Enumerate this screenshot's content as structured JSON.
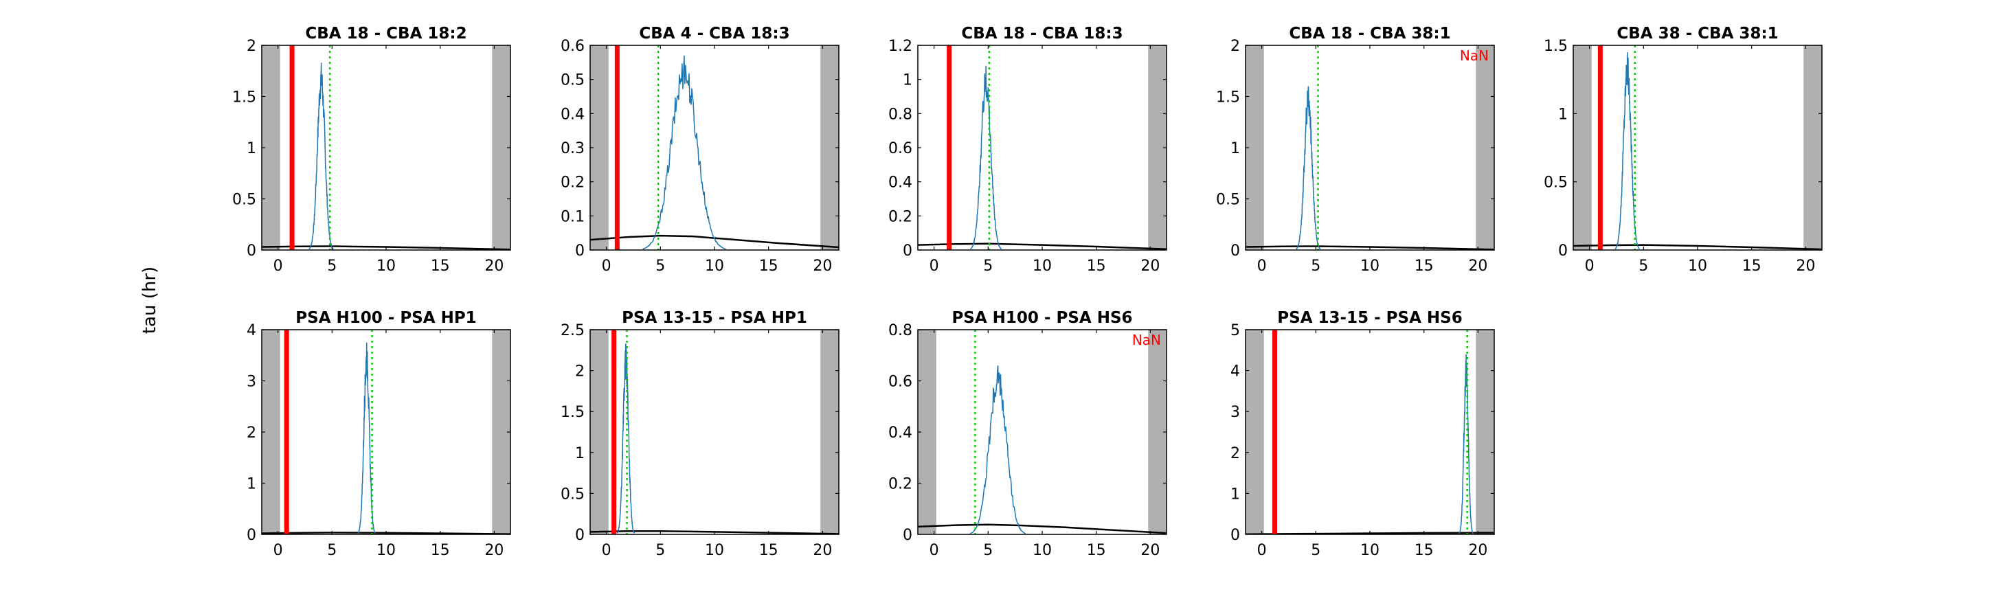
{
  "figure": {
    "ylabel": "tau (hr)"
  },
  "colors": {
    "shade": "#b0b0b0",
    "red_line": "#ff0000",
    "green_line": "#00cc00",
    "series": "#1f77b4",
    "curve": "#000000",
    "nan_text": "#ff0000"
  },
  "chart_data": [
    {
      "type": "line",
      "title": "CBA 18 - CBA 18:2",
      "xlim": [
        -1.5,
        21.5
      ],
      "xticks": [
        0,
        5,
        10,
        15,
        20
      ],
      "ylim": [
        0,
        2
      ],
      "yticks": [
        0,
        0.5,
        1,
        1.5,
        2
      ],
      "ytick_labels": [
        "0",
        "0.5",
        "1",
        "1.5",
        "2"
      ],
      "shaded_regions": [
        [
          -1.5,
          0.2
        ],
        [
          19.8,
          21.5
        ]
      ],
      "red_line_x": 1.3,
      "green_line_x": 4.8,
      "peak": {
        "center": 4.0,
        "width": 0.35,
        "height": 1.83
      },
      "curve": {
        "x": [
          -1.5,
          2,
          5,
          10,
          15,
          21.5
        ],
        "y": [
          0.03,
          0.035,
          0.037,
          0.03,
          0.02,
          0.005
        ]
      },
      "nan_label": ""
    },
    {
      "type": "line",
      "title": "CBA 4 - CBA 18:3",
      "xlim": [
        -1.5,
        21.5
      ],
      "xticks": [
        0,
        5,
        10,
        15,
        20
      ],
      "ylim": [
        0,
        0.6
      ],
      "yticks": [
        0,
        0.1,
        0.2,
        0.3,
        0.4,
        0.5,
        0.6
      ],
      "ytick_labels": [
        "0",
        "0.1",
        "0.2",
        "0.3",
        "0.4",
        "0.5",
        "0.6"
      ],
      "shaded_regions": [
        [
          -1.5,
          0.2
        ],
        [
          19.8,
          21.5
        ]
      ],
      "red_line_x": 1.0,
      "green_line_x": 4.8,
      "peak": {
        "center": 7.2,
        "width": 1.2,
        "height": 0.57
      },
      "curve": {
        "x": [
          -1.5,
          2,
          5,
          8,
          12,
          16,
          21.5
        ],
        "y": [
          0.03,
          0.038,
          0.042,
          0.04,
          0.03,
          0.02,
          0.008
        ]
      },
      "nan_label": ""
    },
    {
      "type": "line",
      "title": "CBA 18 - CBA 18:3",
      "xlim": [
        -1.5,
        21.5
      ],
      "xticks": [
        0,
        5,
        10,
        15,
        20
      ],
      "ylim": [
        0,
        1.2
      ],
      "yticks": [
        0,
        0.2,
        0.4,
        0.6,
        0.8,
        1,
        1.2
      ],
      "ytick_labels": [
        "0",
        "0.2",
        "0.4",
        "0.6",
        "0.8",
        "1",
        "1.2"
      ],
      "shaded_regions": [
        [
          -1.5,
          -1.5
        ],
        [
          19.8,
          21.5
        ]
      ],
      "red_line_x": 1.4,
      "green_line_x": 5.1,
      "peak": {
        "center": 4.8,
        "width": 0.45,
        "height": 1.08
      },
      "curve": {
        "x": [
          -1.5,
          2,
          5,
          10,
          15,
          21.5
        ],
        "y": [
          0.03,
          0.035,
          0.037,
          0.03,
          0.02,
          0.005
        ]
      },
      "nan_label": ""
    },
    {
      "type": "line",
      "title": "CBA 18 - CBA 38:1",
      "xlim": [
        -1.5,
        21.5
      ],
      "xticks": [
        0,
        5,
        10,
        15,
        20
      ],
      "ylim": [
        0,
        2
      ],
      "yticks": [
        0,
        0.5,
        1,
        1.5,
        2
      ],
      "ytick_labels": [
        "0",
        "0.5",
        "1",
        "1.5",
        "2"
      ],
      "shaded_regions": [
        [
          -1.5,
          0.2
        ],
        [
          19.8,
          21.5
        ]
      ],
      "red_line_x": null,
      "green_line_x": 5.2,
      "peak": {
        "center": 4.3,
        "width": 0.35,
        "height": 1.6
      },
      "curve": {
        "x": [
          -1.5,
          2,
          5,
          10,
          15,
          21.5
        ],
        "y": [
          0.03,
          0.035,
          0.037,
          0.03,
          0.02,
          0.005
        ]
      },
      "nan_label": "NaN"
    },
    {
      "type": "line",
      "title": "CBA 38 - CBA 38:1",
      "xlim": [
        -1.5,
        21.5
      ],
      "xticks": [
        0,
        5,
        10,
        15,
        20
      ],
      "ylim": [
        0,
        1.5
      ],
      "yticks": [
        0,
        0.5,
        1,
        1.5
      ],
      "ytick_labels": [
        "0",
        "0.5",
        "1",
        "1.5"
      ],
      "shaded_regions": [
        [
          -1.5,
          0.2
        ],
        [
          19.8,
          21.5
        ]
      ],
      "red_line_x": 1.0,
      "green_line_x": 4.2,
      "peak": {
        "center": 3.5,
        "width": 0.35,
        "height": 1.45
      },
      "curve": {
        "x": [
          -1.5,
          2,
          5,
          10,
          15,
          21.5
        ],
        "y": [
          0.03,
          0.035,
          0.037,
          0.03,
          0.02,
          0.005
        ]
      },
      "nan_label": ""
    },
    {
      "type": "line",
      "title": "PSA H100 - PSA HP1",
      "xlim": [
        -1.5,
        21.5
      ],
      "xticks": [
        0,
        5,
        10,
        15,
        20
      ],
      "ylim": [
        0,
        4
      ],
      "yticks": [
        0,
        1,
        2,
        3,
        4
      ],
      "ytick_labels": [
        "0",
        "1",
        "2",
        "3",
        "4"
      ],
      "shaded_regions": [
        [
          -1.5,
          0.2
        ],
        [
          19.8,
          21.5
        ]
      ],
      "red_line_x": 0.8,
      "green_line_x": 8.7,
      "peak": {
        "center": 8.2,
        "width": 0.25,
        "height": 3.75
      },
      "curve": {
        "x": [
          -1.5,
          2,
          5,
          10,
          15,
          21.5
        ],
        "y": [
          0.02,
          0.03,
          0.035,
          0.03,
          0.02,
          0.005
        ]
      },
      "nan_label": ""
    },
    {
      "type": "line",
      "title": "PSA 13-15 - PSA HP1",
      "xlim": [
        -1.5,
        21.5
      ],
      "xticks": [
        0,
        5,
        10,
        15,
        20
      ],
      "ylim": [
        0,
        2.5
      ],
      "yticks": [
        0,
        0.5,
        1,
        1.5,
        2,
        2.5
      ],
      "ytick_labels": [
        "0",
        "0.5",
        "1",
        "1.5",
        "2",
        "2.5"
      ],
      "shaded_regions": [
        [
          -1.5,
          0.2
        ],
        [
          19.8,
          21.5
        ]
      ],
      "red_line_x": 0.7,
      "green_line_x": 1.9,
      "peak": {
        "center": 1.8,
        "width": 0.25,
        "height": 2.33
      },
      "curve": {
        "x": [
          -1.5,
          2,
          5,
          10,
          15,
          21.5
        ],
        "y": [
          0.03,
          0.04,
          0.04,
          0.03,
          0.02,
          0.005
        ]
      },
      "nan_label": ""
    },
    {
      "type": "line",
      "title": "PSA H100 - PSA HS6",
      "xlim": [
        -1.5,
        21.5
      ],
      "xticks": [
        0,
        5,
        10,
        15,
        20
      ],
      "ylim": [
        0,
        0.8
      ],
      "yticks": [
        0,
        0.2,
        0.4,
        0.6,
        0.8
      ],
      "ytick_labels": [
        "0",
        "0.2",
        "0.4",
        "0.6",
        "0.8"
      ],
      "shaded_regions": [
        [
          -1.5,
          0.2
        ],
        [
          19.8,
          21.5
        ]
      ],
      "red_line_x": null,
      "green_line_x": 3.8,
      "peak": {
        "center": 5.9,
        "width": 0.8,
        "height": 0.66
      },
      "curve": {
        "x": [
          -1.5,
          2,
          5,
          8,
          12,
          16,
          21.5
        ],
        "y": [
          0.03,
          0.036,
          0.038,
          0.035,
          0.028,
          0.018,
          0.005
        ]
      },
      "nan_label": "NaN"
    },
    {
      "type": "line",
      "title": "PSA 13-15 - PSA HS6",
      "xlim": [
        -1.5,
        21.5
      ],
      "xticks": [
        0,
        5,
        10,
        15,
        20
      ],
      "ylim": [
        0,
        5
      ],
      "yticks": [
        0,
        1,
        2,
        3,
        4,
        5
      ],
      "ytick_labels": [
        "0",
        "1",
        "2",
        "3",
        "4",
        "5"
      ],
      "shaded_regions": [
        [
          -1.5,
          0.2
        ],
        [
          19.8,
          21.5
        ]
      ],
      "red_line_x": 1.2,
      "green_line_x": 19.0,
      "peak": {
        "center": 18.9,
        "width": 0.2,
        "height": 4.4
      },
      "curve": {
        "x": [
          -1.5,
          2,
          5,
          10,
          15,
          21.5
        ],
        "y": [
          0.005,
          0.01,
          0.015,
          0.025,
          0.035,
          0.04
        ]
      },
      "nan_label": ""
    }
  ]
}
